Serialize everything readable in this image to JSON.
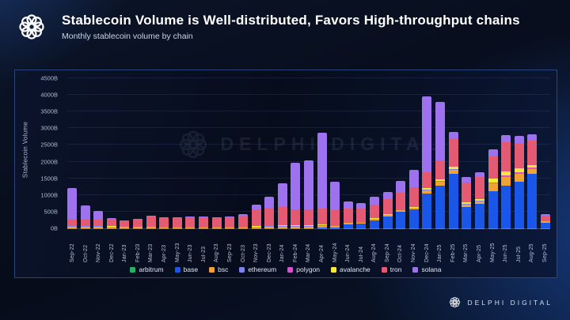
{
  "header": {
    "title": "Stablecoin Volume is Well-distributed, Favors High-throughput chains",
    "subtitle": "Monthly stablecoin volume by chain"
  },
  "watermark": {
    "brand": "DELPHI DIGITAL"
  },
  "footer": {
    "brand": "DELPHI DIGITAL"
  },
  "colors": {
    "background": "#070c1a",
    "panel_border": "#4870bc",
    "axis_text": "#aebad2",
    "title_text": "#ffffff"
  },
  "chart_data": {
    "type": "bar",
    "stacked": true,
    "title": "Monthly stablecoin volume by chain",
    "xlabel": "",
    "ylabel": "Stablecoin Volume",
    "ylim": [
      0,
      4500
    ],
    "ytick_step": 500,
    "ytick_suffix": "B",
    "grid": true,
    "legend_position": "bottom",
    "categories": [
      "Sep-22",
      "Oct-22",
      "Nov-22",
      "Dec-22",
      "Jan-23",
      "Feb-23",
      "Mar-23",
      "Apr-23",
      "May-23",
      "Jun-23",
      "Jul-23",
      "Aug-23",
      "Sep-23",
      "Oct-23",
      "Nov-23",
      "Dec-23",
      "Jan-24",
      "Feb-24",
      "Mar-24",
      "Apr-24",
      "May-24",
      "Jun-24",
      "Jul-24",
      "Aug-24",
      "Sep-24",
      "Oct-24",
      "Nov-24",
      "Dec-24",
      "Jan-25",
      "Feb-25",
      "Mar-25",
      "Apr-25",
      "May-25",
      "Jun-25",
      "Jul-25",
      "Aug-25",
      "Sep-25"
    ],
    "series": [
      {
        "name": "arbitrum",
        "color": "#28b06a",
        "values": [
          5,
          5,
          5,
          2,
          2,
          2,
          2,
          2,
          2,
          2,
          2,
          2,
          2,
          2,
          3,
          3,
          4,
          4,
          4,
          4,
          4,
          4,
          4,
          4,
          4,
          4,
          5,
          5,
          5,
          5,
          4,
          4,
          5,
          5,
          5,
          5,
          2
        ]
      },
      {
        "name": "base",
        "color": "#1a56e8",
        "values": [
          0,
          0,
          0,
          0,
          0,
          0,
          0,
          0,
          0,
          0,
          2,
          2,
          2,
          3,
          4,
          5,
          6,
          8,
          8,
          10,
          10,
          120,
          130,
          240,
          360,
          500,
          560,
          1035,
          1275,
          1630,
          640,
          730,
          1120,
          1280,
          1400,
          1620,
          170
        ]
      },
      {
        "name": "bsc",
        "color": "#f0a232",
        "values": [
          40,
          40,
          45,
          40,
          35,
          35,
          35,
          30,
          30,
          30,
          28,
          28,
          28,
          30,
          35,
          40,
          45,
          45,
          45,
          60,
          50,
          40,
          40,
          35,
          35,
          40,
          45,
          90,
          110,
          110,
          70,
          80,
          220,
          260,
          240,
          150,
          30
        ]
      },
      {
        "name": "ethereum",
        "color": "#7e82ea",
        "values": [
          15,
          15,
          20,
          12,
          10,
          10,
          12,
          10,
          10,
          10,
          10,
          10,
          10,
          10,
          12,
          15,
          15,
          15,
          15,
          15,
          15,
          12,
          12,
          10,
          10,
          10,
          12,
          20,
          25,
          25,
          15,
          15,
          25,
          25,
          25,
          25,
          8
        ]
      },
      {
        "name": "polygon",
        "color": "#d94fd0",
        "values": [
          5,
          5,
          5,
          4,
          4,
          4,
          4,
          4,
          4,
          4,
          4,
          4,
          4,
          5,
          6,
          7,
          8,
          8,
          8,
          8,
          8,
          6,
          6,
          5,
          5,
          5,
          6,
          15,
          15,
          15,
          10,
          10,
          15,
          15,
          15,
          15,
          5
        ]
      },
      {
        "name": "avalanche",
        "color": "#f5e93c",
        "values": [
          5,
          5,
          5,
          4,
          4,
          4,
          4,
          4,
          4,
          4,
          4,
          4,
          4,
          5,
          5,
          5,
          7,
          10,
          10,
          12,
          10,
          8,
          8,
          8,
          8,
          10,
          12,
          35,
          50,
          60,
          40,
          45,
          100,
          120,
          120,
          85,
          10
        ]
      },
      {
        "name": "tron",
        "color": "#e45a72",
        "values": [
          200,
          200,
          175,
          198,
          175,
          200,
          303,
          260,
          260,
          285,
          285,
          260,
          285,
          330,
          505,
          545,
          545,
          470,
          470,
          490,
          455,
          400,
          390,
          420,
          450,
          500,
          600,
          480,
          560,
          855,
          600,
          660,
          675,
          885,
          760,
          730,
          150
        ]
      },
      {
        "name": "solana",
        "color": "#9e72ee",
        "values": [
          950,
          430,
          275,
          40,
          20,
          20,
          20,
          15,
          15,
          15,
          15,
          15,
          15,
          35,
          140,
          330,
          730,
          1415,
          1470,
          2261,
          853,
          210,
          175,
          228,
          228,
          361,
          515,
          2270,
          1760,
          200,
          151,
          146,
          200,
          200,
          200,
          200,
          50
        ]
      }
    ]
  }
}
